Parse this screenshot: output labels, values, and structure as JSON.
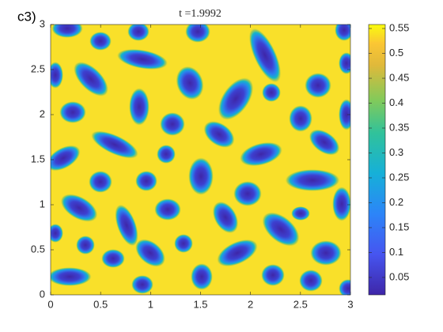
{
  "chart_data": {
    "type": "heatmap",
    "title": "t =1.9992",
    "panel_label": "c3)",
    "xlim": [
      0,
      3
    ],
    "ylim": [
      0,
      3
    ],
    "xticks": [
      0,
      0.5,
      1,
      1.5,
      2,
      2.5,
      3
    ],
    "yticks": [
      0,
      0.5,
      1,
      1.5,
      2,
      2.5,
      3
    ],
    "colormap": "parula",
    "colorbar": {
      "clim": [
        0.015,
        0.558
      ],
      "ticks": [
        0.05,
        0.1,
        0.15,
        0.2,
        0.25,
        0.3,
        0.35,
        0.4,
        0.45,
        0.5,
        0.55
      ]
    }
  }
}
